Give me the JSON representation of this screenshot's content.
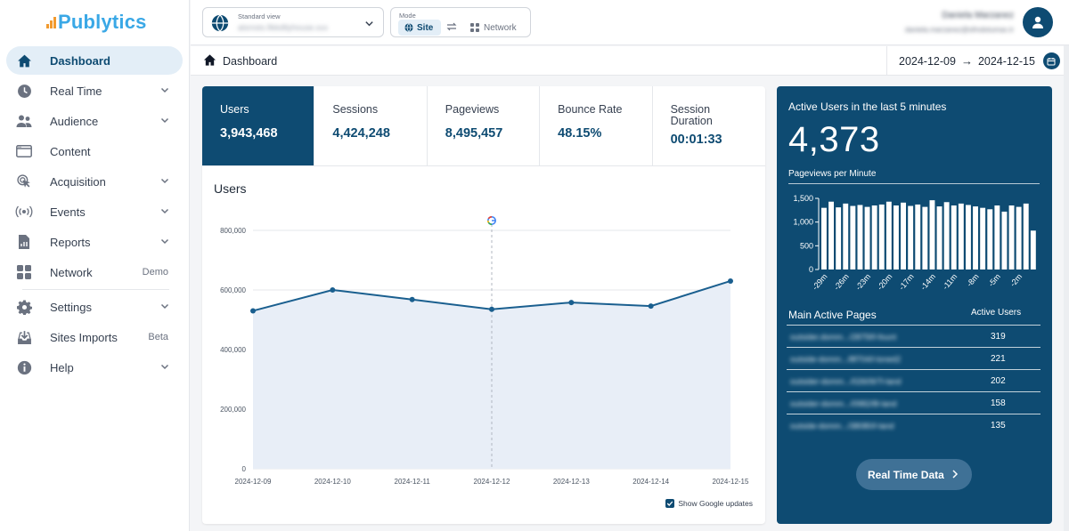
{
  "brand": {
    "name": "Publytics",
    "accent": "#0e4b72",
    "logo_color": "#3aa8e6",
    "logo_bars_color": "#f29a2e"
  },
  "topbar": {
    "view_label": "Standard view",
    "view_value": "alsmstx.fikkdtlyhouse.xxx",
    "mode_label": "Mode",
    "mode_site": "Site",
    "mode_network": "Network",
    "user_name": "Daniela Marzanez",
    "user_email": "daniela.marzanez@sfmdotumax.tr"
  },
  "sidebar": {
    "items": [
      {
        "label": "Dashboard",
        "icon": "home-icon",
        "active": true
      },
      {
        "label": "Real Time",
        "icon": "clock-icon",
        "chevron": true
      },
      {
        "label": "Audience",
        "icon": "users-icon",
        "chevron": true
      },
      {
        "label": "Content",
        "icon": "browser-icon"
      },
      {
        "label": "Acquisition",
        "icon": "pointer-icon",
        "chevron": true
      },
      {
        "label": "Events",
        "icon": "broadcast-icon",
        "chevron": true
      },
      {
        "label": "Reports",
        "icon": "file-chart-icon",
        "chevron": true
      },
      {
        "label": "Network",
        "icon": "grid-icon",
        "tag": "Demo"
      },
      {
        "label": "Settings",
        "icon": "gear-icon",
        "chevron": true
      },
      {
        "label": "Sites Imports",
        "icon": "inbox-download-icon",
        "tag": "Beta"
      },
      {
        "label": "Help",
        "icon": "help-icon",
        "chevron": true
      }
    ]
  },
  "breadcrumb": {
    "label": "Dashboard"
  },
  "date_range": {
    "start": "2024-12-09",
    "arrow": "→",
    "end": "2024-12-15"
  },
  "kpis": [
    {
      "label": "Users",
      "value": "3,943,468",
      "active": true
    },
    {
      "label": "Sessions",
      "value": "4,424,248"
    },
    {
      "label": "Pageviews",
      "value": "8,495,457"
    },
    {
      "label": "Bounce Rate",
      "value": "48.15%"
    },
    {
      "label": "Session Duration",
      "value": "00:01:33"
    }
  ],
  "main_chart_title": "Users",
  "show_google_label": "Show Google updates",
  "realtime": {
    "header": "Active Users in the last 5 minutes",
    "count": "4,373",
    "ppm_label": "Pageviews per Minute",
    "pages_header": "Main Active Pages",
    "active_users_header": "Active Users",
    "pages": [
      {
        "url": "outsider.domm.../2875f/l-fount",
        "count": "319"
      },
      {
        "url": "outside-domm.../8f704/l-loned2",
        "count": "221"
      },
      {
        "url": "outsider-domm.../02609/7l-land",
        "count": "202"
      },
      {
        "url": "outsider-domm.../0982/8l-land",
        "count": "158"
      },
      {
        "url": "outside-domm.../38080/l-land",
        "count": "135"
      }
    ],
    "button": "Real Time Data"
  },
  "chart_data": [
    {
      "type": "area",
      "title": "Users",
      "x": [
        "2024-12-09",
        "2024-12-10",
        "2024-12-11",
        "2024-12-12",
        "2024-12-13",
        "2024-12-14",
        "2024-12-15"
      ],
      "series": [
        {
          "values": [
            530000,
            600000,
            568000,
            535000,
            558000,
            546000,
            630000
          ]
        }
      ],
      "ylim": [
        0,
        800000
      ],
      "yticks": [
        "800,000",
        "600,000",
        "400,000",
        "200,000",
        "0"
      ],
      "ytick_values": [
        800000,
        600000,
        400000,
        200000,
        0
      ],
      "annotation": {
        "x": "2024-12-12",
        "marker": "google-icon"
      },
      "line_color": "#1a5f8f",
      "fill_color": "#e8eef7",
      "grid": true
    },
    {
      "type": "bar",
      "title": "Pageviews per Minute",
      "values": [
        1300,
        1430,
        1310,
        1390,
        1340,
        1360,
        1320,
        1350,
        1370,
        1430,
        1350,
        1410,
        1340,
        1370,
        1320,
        1460,
        1330,
        1420,
        1350,
        1390,
        1360,
        1330,
        1300,
        1270,
        1350,
        1220,
        1350,
        1320,
        1390,
        820
      ],
      "ylim": [
        0,
        1500
      ],
      "yticks": [
        "1,500",
        "1,000",
        "500",
        "0"
      ],
      "ytick_values": [
        1500,
        1000,
        500,
        0
      ],
      "xticks": [
        "-29m",
        "-26m",
        "-23m",
        "-20m",
        "-17m",
        "-14m",
        "-11m",
        "-8m",
        "-5m",
        "-2m"
      ],
      "bar_color": "#ffffff"
    }
  ]
}
